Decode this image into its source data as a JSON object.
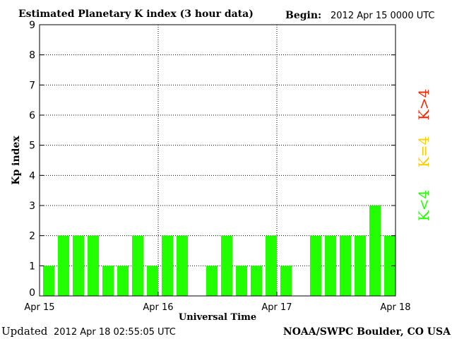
{
  "chart_data": {
    "type": "bar",
    "title": "Estimated Planetary K index (3 hour data)",
    "begin_label": "Begin:",
    "begin_value": "2012 Apr 15 0000 UTC",
    "xlabel": "Universal Time",
    "ylabel": "Kp index",
    "ylim": [
      0,
      9
    ],
    "yticks": [
      "0",
      "1",
      "2",
      "3",
      "4",
      "5",
      "6",
      "7",
      "8",
      "9"
    ],
    "xticks": [
      "Apr 15",
      "Apr 16",
      "Apr 17",
      "Apr 18"
    ],
    "grid": true,
    "bars_per_day": 8,
    "values": [
      1,
      2,
      2,
      2,
      1,
      1,
      2,
      1,
      2,
      2,
      0,
      1,
      2,
      1,
      1,
      2,
      1,
      0,
      2,
      2,
      2,
      2,
      3,
      2
    ],
    "colors": {
      "low": "#22ff00",
      "mid": "#ffcc00",
      "high": "#ff2200"
    },
    "legend": {
      "low": "K<4",
      "mid": "K=4",
      "high": "K>4"
    }
  },
  "footer": {
    "updated_label": "Updated",
    "updated_value": "2012 Apr 18 02:55:05 UTC",
    "source": "NOAA/SWPC Boulder, CO USA"
  }
}
